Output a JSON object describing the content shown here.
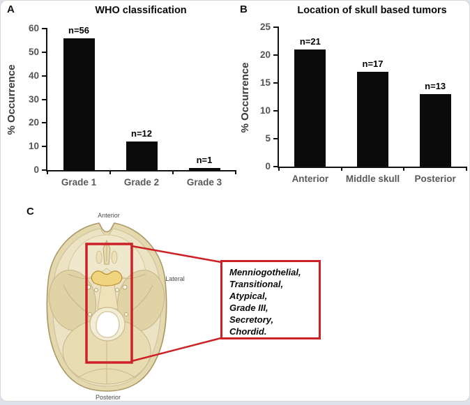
{
  "panel_labels": {
    "a": "A",
    "b": "B",
    "c": "C"
  },
  "chart_data": [
    {
      "type": "bar",
      "panel": "A",
      "title": "WHO classification",
      "xlabel": "",
      "ylabel": "% Occurrence",
      "categories": [
        "Grade 1",
        "Grade 2",
        "Grade 3"
      ],
      "values": [
        56,
        12,
        1
      ],
      "bar_labels": [
        "n=56",
        "n=12",
        "n=1"
      ],
      "ylim": [
        0,
        60
      ],
      "yticks": [
        0,
        10,
        20,
        30,
        40,
        50,
        60
      ],
      "bar_color": "#0b0b0b",
      "grid": false,
      "legend": "none"
    },
    {
      "type": "bar",
      "panel": "B",
      "title": "Location of skull based tumors",
      "xlabel": "",
      "ylabel": "% Occurrence",
      "categories": [
        "Anterior",
        "Middle skull",
        "Posterior"
      ],
      "values": [
        21,
        17,
        13
      ],
      "bar_labels": [
        "n=21",
        "n=17",
        "n=13"
      ],
      "ylim": [
        0,
        25
      ],
      "yticks": [
        0,
        5,
        10,
        15,
        20,
        25
      ],
      "bar_color": "#0b0b0b",
      "grid": false,
      "legend": "none"
    }
  ],
  "diagram": {
    "labels": {
      "top": "Anterior",
      "right": "Lateral",
      "bottom": "Posterior"
    },
    "callout_lines": [
      "Menniogothelial,",
      "Transitional,",
      "Atypical,",
      "Grade III,",
      "Secretory,",
      "Chordid."
    ],
    "highlight_color": "#cc2127"
  },
  "colors": {
    "bar": "#0b0b0b",
    "axis": "#111111",
    "tick_label": "#555555",
    "category_label": "#595959",
    "red": "#cc2127",
    "bone_light": "#ece3c4",
    "bone_dark": "#e3d8ae",
    "sella_gold": "#f1d47e",
    "card_background": "#ffffff",
    "page_background": "#dde3ea"
  }
}
